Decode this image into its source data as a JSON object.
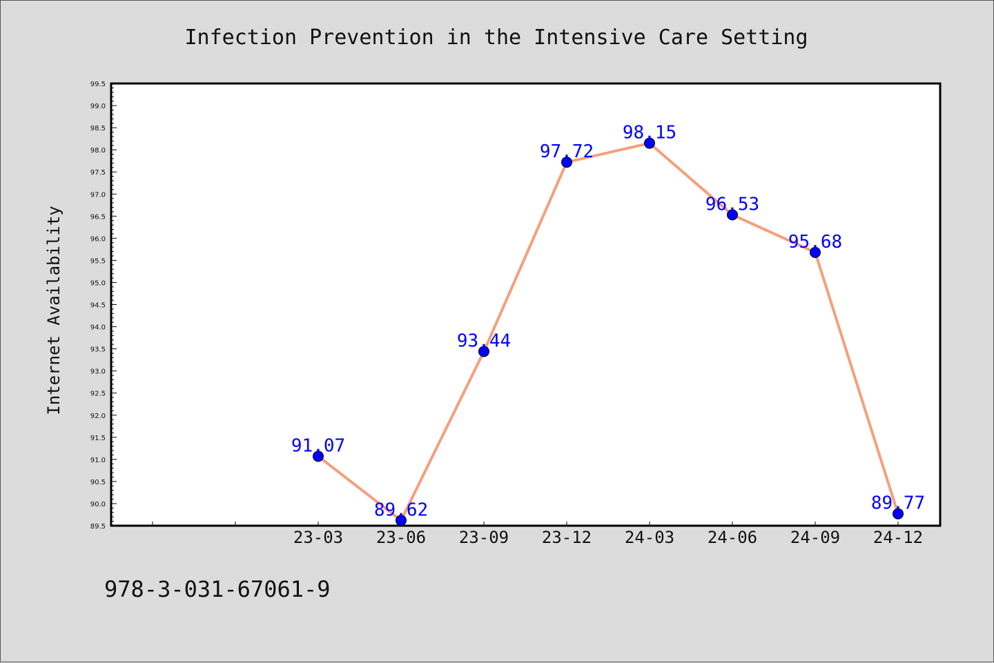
{
  "chart_data": {
    "type": "line",
    "title": "Infection Prevention in the Intensive Care Setting",
    "xlabel": "",
    "ylabel": "Internet Availability",
    "categories": [
      "23-03",
      "23-06",
      "23-09",
      "23-12",
      "24-03",
      "24-06",
      "24-09",
      "24-12"
    ],
    "series": [
      {
        "values": [
          91.07,
          89.62,
          93.44,
          97.72,
          98.15,
          96.53,
          95.68,
          89.77
        ],
        "data_labels": [
          "91.07",
          "89.62",
          "93.44",
          "97.72",
          "98.15",
          "96.53",
          "95.68",
          "89.77"
        ],
        "line_color": "#f4a07c",
        "marker_color": "#0000ff"
      }
    ],
    "ylim": [
      89.5,
      99.5
    ],
    "yticks": [
      "89.5",
      "90.0",
      "90.5",
      "91.0",
      "91.5",
      "92.0",
      "92.5",
      "93.0",
      "93.5",
      "94.0",
      "94.5",
      "95.0",
      "95.5",
      "96.0",
      "96.5",
      "97.0",
      "97.5",
      "98.0",
      "98.5",
      "99.0",
      "99.5"
    ],
    "grid": false,
    "legend": "none"
  },
  "footer": {
    "isbn": "978-3-031-67061-9"
  },
  "colors": {
    "background": "#dcdcdc",
    "plot_area": "#ffffff",
    "line": "#f4a07c",
    "marker": "#0000ff",
    "label": "#0000ff"
  }
}
